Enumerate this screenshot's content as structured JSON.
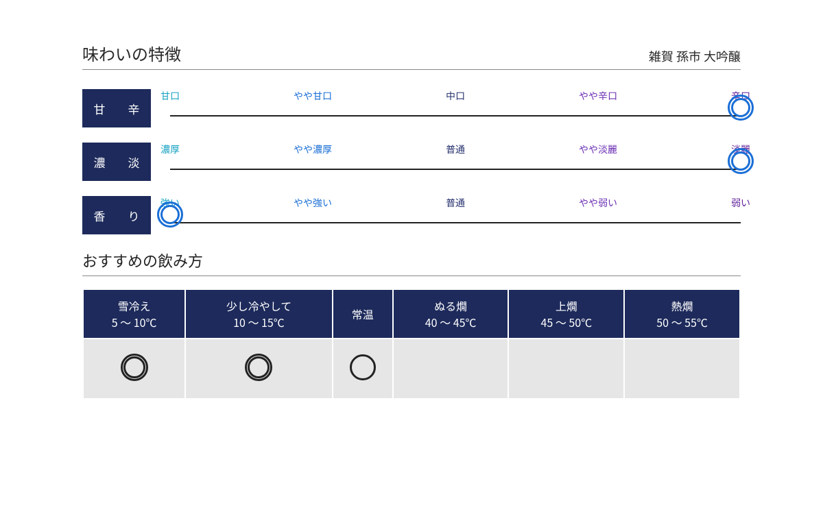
{
  "title": "味わいの特徴",
  "product_name": "雑賀 孫市 大吟醸",
  "colors": {
    "label_box_bg": "#1d2a5b",
    "ring_highlight": "#1a6fd6",
    "table_header_bg": "#1d2a5b",
    "table_cell_bg": "#e6e6e6",
    "scale_point_colors": [
      "#1aa3c4",
      "#1a6fd6",
      "#26316e",
      "#6b2fb3",
      "#5e1c99"
    ]
  },
  "characteristics": [
    {
      "name": "甘　辛",
      "selected_index": 4,
      "levels": [
        "甘口",
        "やや甘口",
        "中口",
        "やや辛口",
        "辛口"
      ]
    },
    {
      "name": "濃　淡",
      "selected_index": 4,
      "levels": [
        "濃厚",
        "やや濃厚",
        "普通",
        "やや淡麗",
        "淡麗"
      ]
    },
    {
      "name": "香　り",
      "selected_index": 0,
      "levels": [
        "強い",
        "やや強い",
        "普通",
        "やや弱い",
        "弱い"
      ]
    }
  ],
  "serving_title": "おすすめの飲み方",
  "serving": [
    {
      "label_line1": "雪冷え",
      "label_line2": "5 ～ 10℃",
      "mark": "double"
    },
    {
      "label_line1": "少し冷やして",
      "label_line2": "10 ～ 15℃",
      "mark": "double"
    },
    {
      "label_line1": "常温",
      "label_line2": "",
      "mark": "single"
    },
    {
      "label_line1": "ぬる燗",
      "label_line2": "40 ～ 45℃",
      "mark": ""
    },
    {
      "label_line1": "上燗",
      "label_line2": "45 ～ 50℃",
      "mark": ""
    },
    {
      "label_line1": "熱燗",
      "label_line2": "50 ～ 55℃",
      "mark": ""
    }
  ]
}
